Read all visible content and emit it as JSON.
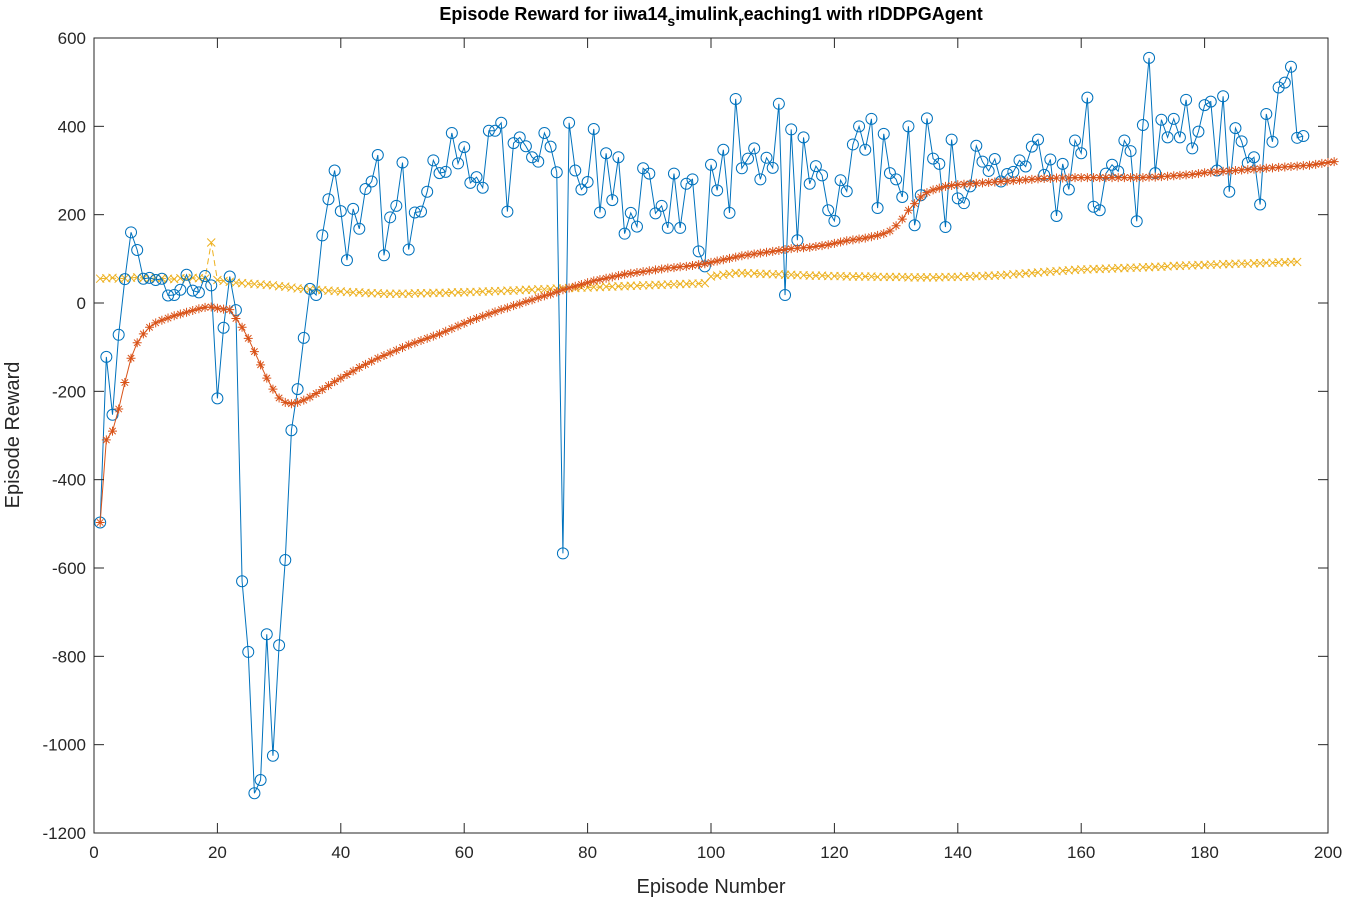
{
  "chart_data": {
    "type": "line",
    "title": "Episode Reward for iiwa14",
    "title_sub1": "s",
    "title_mid": "imulink",
    "title_sub2": "r",
    "title_end": "eaching1 with rlDDPGAgent",
    "xlabel": "Episode Number",
    "ylabel": "Episode Reward",
    "xlim": [
      0,
      200
    ],
    "ylim": [
      -1200,
      600
    ],
    "xticks": [
      0,
      20,
      40,
      60,
      80,
      100,
      120,
      140,
      160,
      180,
      200
    ],
    "yticks": [
      600,
      400,
      200,
      0,
      -200,
      -400,
      -600,
      -800,
      -1000,
      -1200
    ],
    "grid": false,
    "series": [
      {
        "key": "episode_reward",
        "color": "#0072BD",
        "marker": "circle",
        "values": [
          -497,
          -122,
          -253,
          -72,
          54,
          160,
          120,
          55,
          57,
          52,
          55,
          17,
          18,
          30,
          64,
          28,
          24,
          61,
          40,
          -216,
          -56,
          60,
          -16,
          -630,
          -790,
          -1110,
          -1080,
          -750,
          -1025,
          -775,
          -582,
          -288,
          -195,
          -79,
          32,
          18,
          153,
          235,
          300,
          208,
          97,
          213,
          168,
          258,
          275,
          335,
          108,
          194,
          220,
          318,
          121,
          205,
          207,
          252,
          323,
          294,
          297,
          385,
          316,
          353,
          272,
          285,
          261,
          390,
          390,
          408,
          207,
          362,
          375,
          355,
          330,
          320,
          385,
          354,
          296,
          -567,
          408,
          300,
          257,
          274,
          394,
          205,
          339,
          233,
          330,
          157,
          204,
          173,
          305,
          293,
          203,
          220,
          170,
          293,
          170,
          270,
          280,
          117,
          83,
          313,
          255,
          347,
          204,
          462,
          305,
          327,
          350,
          280,
          329,
          306,
          451,
          18,
          393,
          142,
          375,
          270,
          310,
          289,
          210,
          186,
          278,
          253,
          359,
          400,
          347,
          417,
          215,
          383,
          294,
          280,
          240,
          400,
          176,
          244,
          418,
          327,
          315,
          172,
          370,
          237,
          226,
          264,
          356,
          320,
          299,
          326,
          275,
          292,
          297,
          323,
          309,
          354,
          370,
          290,
          325,
          197,
          315,
          257,
          368,
          339,
          465,
          218,
          210,
          293,
          313,
          298,
          368,
          344,
          185,
          403,
          555,
          294,
          415,
          375,
          417,
          375,
          460,
          350,
          388,
          448,
          456,
          300,
          468,
          252,
          396,
          366,
          317,
          330,
          223,
          428,
          365,
          488,
          499,
          535,
          374,
          378
        ]
      },
      {
        "key": "average_reward",
        "color": "#D95319",
        "marker": "asterisk",
        "values": [
          -497,
          -310,
          -290,
          -240,
          -180,
          -125,
          -90,
          -70,
          -55,
          -45,
          -39,
          -34,
          -29,
          -25,
          -21,
          -17,
          -13,
          -10,
          -9,
          -12,
          -14,
          -15,
          -35,
          -55,
          -80,
          -110,
          -140,
          -170,
          -195,
          -215,
          -225,
          -228,
          -225,
          -220,
          -213,
          -205,
          -196,
          -187,
          -178,
          -170,
          -162,
          -154,
          -146,
          -139,
          -132,
          -125,
          -119,
          -113,
          -107,
          -101,
          -95,
          -90,
          -85,
          -80,
          -75,
          -70,
          -64,
          -58,
          -52,
          -46,
          -40,
          -35,
          -30,
          -25,
          -20,
          -15,
          -11,
          -6,
          -2,
          3,
          7,
          12,
          16,
          20,
          25,
          30,
          34,
          38,
          42,
          46,
          50,
          53,
          56,
          59,
          62,
          65,
          67,
          69,
          71,
          73,
          75,
          77,
          79,
          80,
          82,
          83,
          85,
          87,
          89,
          92,
          95,
          98,
          101,
          104,
          107,
          109,
          111,
          113,
          115,
          117,
          119,
          121,
          123,
          124,
          125,
          126,
          128,
          130,
          132,
          135,
          138,
          141,
          143,
          145,
          147,
          150,
          153,
          157,
          163,
          175,
          190,
          210,
          225,
          240,
          250,
          256,
          260,
          264,
          266,
          268,
          269,
          270,
          271,
          272,
          273,
          274,
          275,
          276,
          277,
          278,
          279,
          280,
          281,
          282,
          282,
          283,
          283,
          283,
          284,
          284,
          284,
          284,
          284,
          284,
          284,
          284,
          284,
          284,
          284,
          284,
          285,
          285,
          286,
          287,
          288,
          289,
          290,
          291,
          293,
          295,
          296,
          297,
          298,
          299,
          300,
          301,
          302,
          303,
          304,
          305,
          306,
          307,
          308,
          309,
          310,
          311,
          312,
          314,
          316,
          318,
          320
        ]
      },
      {
        "key": "episode_q0",
        "color": "#EDB120",
        "marker": "x",
        "values": [
          55,
          56,
          57,
          55,
          56,
          57,
          58,
          56,
          55,
          57,
          56,
          55,
          54,
          56,
          55,
          57,
          56,
          55,
          137,
          52,
          50,
          48,
          46,
          45,
          44,
          43,
          42,
          41,
          40,
          38,
          37,
          35,
          33,
          32,
          31,
          30,
          29,
          28,
          27,
          26,
          25,
          24,
          24,
          23,
          22,
          22,
          21,
          21,
          21,
          21,
          21,
          22,
          22,
          22,
          23,
          23,
          23,
          24,
          24,
          24,
          25,
          25,
          26,
          26,
          27,
          27,
          28,
          28,
          29,
          30,
          30,
          31,
          31,
          32,
          33,
          33,
          34,
          34,
          35,
          35,
          36,
          36,
          37,
          37,
          38,
          38,
          39,
          39,
          40,
          40,
          41,
          41,
          42,
          42,
          43,
          43,
          44,
          44,
          45,
          60,
          62,
          64,
          66,
          68,
          68,
          67,
          67,
          66,
          66,
          65,
          65,
          64,
          64,
          63,
          63,
          62,
          62,
          62,
          61,
          61,
          61,
          60,
          60,
          60,
          60,
          60,
          59,
          59,
          59,
          59,
          59,
          58,
          58,
          58,
          58,
          58,
          58,
          59,
          59,
          59,
          60,
          60,
          61,
          61,
          62,
          62,
          63,
          64,
          65,
          66,
          67,
          68,
          69,
          70,
          71,
          72,
          73,
          74,
          75,
          76,
          76,
          77,
          77,
          78,
          78,
          79,
          79,
          80,
          80,
          81,
          81,
          82,
          82,
          83,
          84,
          84,
          85,
          85,
          86,
          86,
          87,
          87,
          88,
          88,
          89,
          89,
          89,
          90,
          90,
          91,
          91,
          92,
          92,
          93,
          93
        ]
      }
    ]
  }
}
